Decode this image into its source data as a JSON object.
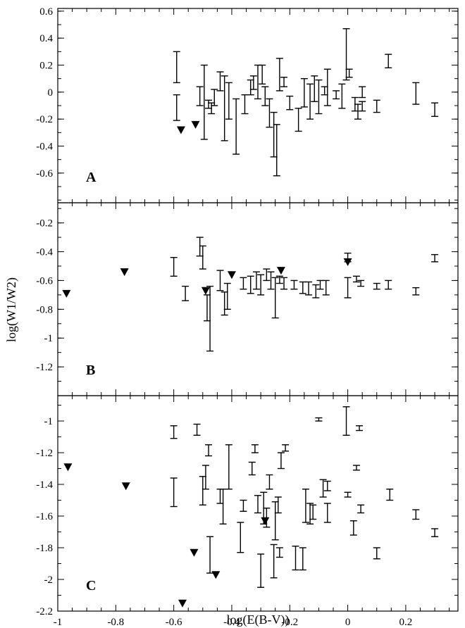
{
  "chart_data": {
    "type": "scatter",
    "xlabel": "log(E(B-V))",
    "ylabel": "log(W1/W2)",
    "xlim": [
      -1.0,
      0.38
    ],
    "x_ticks": [
      -1,
      -0.8,
      -0.6,
      -0.4,
      -0.2,
      0,
      0.2
    ],
    "x_tick_labels": [
      "-1",
      "-0.8",
      "-0.6",
      "-0.4",
      "-0.2",
      "0",
      "0.2"
    ],
    "grid": false,
    "panels": [
      {
        "label": "A",
        "ylim": [
          -0.82,
          0.62
        ],
        "y_ticks": [
          0.6,
          0.4,
          0.2,
          0,
          -0.2,
          -0.4,
          -0.6
        ],
        "y_tick_labels": [
          "0.6",
          "0.4",
          "0.2",
          "0",
          "-0.2",
          "-0.4",
          "-0.6"
        ],
        "error_bars": [
          {
            "x": -0.59,
            "lo": 0.07,
            "hi": 0.3
          },
          {
            "x": -0.59,
            "lo": -0.21,
            "hi": -0.02
          },
          {
            "x": -0.51,
            "lo": -0.1,
            "hi": 0.04
          },
          {
            "x": -0.495,
            "lo": -0.35,
            "hi": 0.2
          },
          {
            "x": -0.48,
            "lo": -0.12,
            "hi": -0.06
          },
          {
            "x": -0.47,
            "lo": -0.16,
            "hi": -0.08
          },
          {
            "x": -0.46,
            "lo": -0.1,
            "hi": 0.02
          },
          {
            "x": -0.44,
            "lo": 0.01,
            "hi": 0.15
          },
          {
            "x": -0.425,
            "lo": -0.36,
            "hi": 0.12
          },
          {
            "x": -0.41,
            "lo": -0.2,
            "hi": 0.07
          },
          {
            "x": -0.385,
            "lo": -0.46,
            "hi": -0.05
          },
          {
            "x": -0.355,
            "lo": -0.16,
            "hi": -0.02
          },
          {
            "x": -0.335,
            "lo": -0.02,
            "hi": 0.09
          },
          {
            "x": -0.325,
            "lo": 0.02,
            "hi": 0.12
          },
          {
            "x": -0.31,
            "lo": -0.05,
            "hi": 0.2
          },
          {
            "x": -0.295,
            "lo": 0.06,
            "hi": 0.2
          },
          {
            "x": -0.285,
            "lo": -0.1,
            "hi": 0.04
          },
          {
            "x": -0.27,
            "lo": -0.26,
            "hi": -0.05
          },
          {
            "x": -0.255,
            "lo": -0.48,
            "hi": -0.15
          },
          {
            "x": -0.245,
            "lo": -0.62,
            "hi": -0.24
          },
          {
            "x": -0.235,
            "lo": 0.01,
            "hi": 0.25
          },
          {
            "x": -0.22,
            "lo": 0.04,
            "hi": 0.11
          },
          {
            "x": -0.2,
            "lo": -0.13,
            "hi": -0.03
          },
          {
            "x": -0.17,
            "lo": -0.29,
            "hi": -0.12
          },
          {
            "x": -0.15,
            "lo": -0.11,
            "hi": 0.1
          },
          {
            "x": -0.13,
            "lo": -0.2,
            "hi": 0.06
          },
          {
            "x": -0.115,
            "lo": -0.07,
            "hi": 0.12
          },
          {
            "x": -0.1,
            "lo": -0.16,
            "hi": 0.09
          },
          {
            "x": -0.08,
            "lo": -0.02,
            "hi": 0.04
          },
          {
            "x": -0.07,
            "lo": -0.1,
            "hi": 0.17
          },
          {
            "x": -0.04,
            "lo": -0.05,
            "hi": 0.01
          },
          {
            "x": -0.02,
            "lo": -0.12,
            "hi": 0.06
          },
          {
            "x": -0.005,
            "lo": 0.09,
            "hi": 0.47
          },
          {
            "x": 0.005,
            "lo": 0.11,
            "hi": 0.17
          },
          {
            "x": 0.025,
            "lo": -0.14,
            "hi": -0.04
          },
          {
            "x": 0.035,
            "lo": -0.2,
            "hi": -0.09
          },
          {
            "x": 0.05,
            "lo": -0.14,
            "hi": -0.07
          },
          {
            "x": 0.05,
            "lo": -0.04,
            "hi": 0.04
          },
          {
            "x": 0.1,
            "lo": -0.15,
            "hi": -0.06
          },
          {
            "x": 0.14,
            "lo": 0.18,
            "hi": 0.28
          },
          {
            "x": 0.235,
            "lo": -0.09,
            "hi": 0.07
          },
          {
            "x": 0.3,
            "lo": -0.18,
            "hi": -0.08
          }
        ],
        "upper_limits": [
          {
            "x": -0.575,
            "y": -0.28
          },
          {
            "x": -0.525,
            "y": -0.24
          }
        ]
      },
      {
        "label": "B",
        "ylim": [
          -1.4,
          -0.06
        ],
        "y_ticks": [
          -0.2,
          -0.4,
          -0.6,
          -0.8,
          -1,
          -1.2
        ],
        "y_tick_labels": [
          "-0.2",
          "-0.4",
          "-0.6",
          "-0.8",
          "-1",
          "-1.2"
        ],
        "error_bars": [
          {
            "x": -0.6,
            "lo": -0.57,
            "hi": -0.44
          },
          {
            "x": -0.56,
            "lo": -0.74,
            "hi": -0.64
          },
          {
            "x": -0.51,
            "lo": -0.43,
            "hi": -0.3
          },
          {
            "x": -0.5,
            "lo": -0.52,
            "hi": -0.36
          },
          {
            "x": -0.485,
            "lo": -0.88,
            "hi": -0.7
          },
          {
            "x": -0.475,
            "lo": -1.09,
            "hi": -0.64
          },
          {
            "x": -0.44,
            "lo": -0.67,
            "hi": -0.53
          },
          {
            "x": -0.425,
            "lo": -0.84,
            "hi": -0.68
          },
          {
            "x": -0.415,
            "lo": -0.8,
            "hi": -0.62
          },
          {
            "x": -0.36,
            "lo": -0.66,
            "hi": -0.58
          },
          {
            "x": -0.335,
            "lo": -0.69,
            "hi": -0.57
          },
          {
            "x": -0.315,
            "lo": -0.66,
            "hi": -0.54
          },
          {
            "x": -0.3,
            "lo": -0.7,
            "hi": -0.56
          },
          {
            "x": -0.28,
            "lo": -0.6,
            "hi": -0.52
          },
          {
            "x": -0.265,
            "lo": -0.66,
            "hi": -0.54
          },
          {
            "x": -0.25,
            "lo": -0.86,
            "hi": -0.58
          },
          {
            "x": -0.235,
            "lo": -0.62,
            "hi": -0.57
          },
          {
            "x": -0.22,
            "lo": -0.66,
            "hi": -0.58
          },
          {
            "x": -0.185,
            "lo": -0.66,
            "hi": -0.6
          },
          {
            "x": -0.155,
            "lo": -0.69,
            "hi": -0.61
          },
          {
            "x": -0.135,
            "lo": -0.7,
            "hi": -0.61
          },
          {
            "x": -0.11,
            "lo": -0.72,
            "hi": -0.63
          },
          {
            "x": -0.095,
            "lo": -0.66,
            "hi": -0.6
          },
          {
            "x": -0.075,
            "lo": -0.7,
            "hi": -0.6
          },
          {
            "x": 0.0,
            "lo": -0.72,
            "hi": -0.58
          },
          {
            "x": 0.0,
            "lo": -0.47,
            "hi": -0.41
          },
          {
            "x": 0.03,
            "lo": -0.61,
            "hi": -0.57
          },
          {
            "x": 0.045,
            "lo": -0.64,
            "hi": -0.6
          },
          {
            "x": 0.1,
            "lo": -0.66,
            "hi": -0.62
          },
          {
            "x": 0.14,
            "lo": -0.66,
            "hi": -0.6
          },
          {
            "x": 0.235,
            "lo": -0.7,
            "hi": -0.65
          },
          {
            "x": 0.3,
            "lo": -0.47,
            "hi": -0.42
          }
        ],
        "upper_limits": [
          {
            "x": -0.97,
            "y": -0.69
          },
          {
            "x": -0.77,
            "y": -0.54
          },
          {
            "x": -0.49,
            "y": -0.67
          },
          {
            "x": -0.4,
            "y": -0.56
          },
          {
            "x": -0.23,
            "y": -0.53
          },
          {
            "x": 0.0,
            "y": -0.47
          }
        ]
      },
      {
        "label": "C",
        "ylim": [
          -2.2,
          -0.84
        ],
        "y_ticks": [
          -1,
          -1.2,
          -1.4,
          -1.6,
          -1.8,
          -2,
          -2.2
        ],
        "y_tick_labels": [
          "-1",
          "-1.2",
          "-1.4",
          "-1.6",
          "-1.8",
          "-2",
          "-2.2"
        ],
        "error_bars": [
          {
            "x": -0.6,
            "lo": -1.11,
            "hi": -1.03
          },
          {
            "x": -0.6,
            "lo": -1.54,
            "hi": -1.36
          },
          {
            "x": -0.52,
            "lo": -1.09,
            "hi": -1.02
          },
          {
            "x": -0.5,
            "lo": -1.53,
            "hi": -1.35
          },
          {
            "x": -0.49,
            "lo": -1.43,
            "hi": -1.28
          },
          {
            "x": -0.48,
            "lo": -1.22,
            "hi": -1.15
          },
          {
            "x": -0.475,
            "lo": -1.96,
            "hi": -1.73
          },
          {
            "x": -0.44,
            "lo": -1.52,
            "hi": -1.43
          },
          {
            "x": -0.43,
            "lo": -1.65,
            "hi": -1.43
          },
          {
            "x": -0.41,
            "lo": -1.43,
            "hi": -1.15
          },
          {
            "x": -0.37,
            "lo": -1.83,
            "hi": -1.64
          },
          {
            "x": -0.36,
            "lo": -1.57,
            "hi": -1.5
          },
          {
            "x": -0.33,
            "lo": -1.34,
            "hi": -1.26
          },
          {
            "x": -0.32,
            "lo": -1.2,
            "hi": -1.15
          },
          {
            "x": -0.31,
            "lo": -1.58,
            "hi": -1.47
          },
          {
            "x": -0.3,
            "lo": -2.05,
            "hi": -1.84
          },
          {
            "x": -0.29,
            "lo": -1.65,
            "hi": -1.45
          },
          {
            "x": -0.28,
            "lo": -1.67,
            "hi": -1.55
          },
          {
            "x": -0.27,
            "lo": -1.43,
            "hi": -1.34
          },
          {
            "x": -0.255,
            "lo": -1.99,
            "hi": -1.78
          },
          {
            "x": -0.25,
            "lo": -1.75,
            "hi": -1.51
          },
          {
            "x": -0.24,
            "lo": -1.58,
            "hi": -1.48
          },
          {
            "x": -0.235,
            "lo": -1.86,
            "hi": -1.8
          },
          {
            "x": -0.23,
            "lo": -1.3,
            "hi": -1.2
          },
          {
            "x": -0.215,
            "lo": -1.19,
            "hi": -1.15
          },
          {
            "x": -0.18,
            "lo": -1.94,
            "hi": -1.79
          },
          {
            "x": -0.155,
            "lo": -1.94,
            "hi": -1.8
          },
          {
            "x": -0.145,
            "lo": -1.64,
            "hi": -1.43
          },
          {
            "x": -0.13,
            "lo": -1.65,
            "hi": -1.52
          },
          {
            "x": -0.12,
            "lo": -1.62,
            "hi": -1.53
          },
          {
            "x": -0.1,
            "lo": -1.0,
            "hi": -0.98
          },
          {
            "x": -0.085,
            "lo": -1.48,
            "hi": -1.37
          },
          {
            "x": -0.07,
            "lo": -1.64,
            "hi": -1.52
          },
          {
            "x": -0.07,
            "lo": -1.44,
            "hi": -1.38
          },
          {
            "x": -0.005,
            "lo": -1.09,
            "hi": -0.91
          },
          {
            "x": 0.0,
            "lo": -1.48,
            "hi": -1.45
          },
          {
            "x": 0.02,
            "lo": -1.72,
            "hi": -1.63
          },
          {
            "x": 0.03,
            "lo": -1.31,
            "hi": -1.28
          },
          {
            "x": 0.04,
            "lo": -1.06,
            "hi": -1.03
          },
          {
            "x": 0.045,
            "lo": -1.58,
            "hi": -1.53
          },
          {
            "x": 0.1,
            "lo": -1.87,
            "hi": -1.8
          },
          {
            "x": 0.145,
            "lo": -1.5,
            "hi": -1.43
          },
          {
            "x": 0.235,
            "lo": -1.62,
            "hi": -1.56
          },
          {
            "x": 0.3,
            "lo": -1.73,
            "hi": -1.68
          }
        ],
        "upper_limits": [
          {
            "x": -0.965,
            "y": -1.29
          },
          {
            "x": -0.765,
            "y": -1.41
          },
          {
            "x": -0.57,
            "y": -2.15
          },
          {
            "x": -0.53,
            "y": -1.83
          },
          {
            "x": -0.455,
            "y": -1.97
          },
          {
            "x": -0.285,
            "y": -1.63
          }
        ]
      }
    ]
  }
}
